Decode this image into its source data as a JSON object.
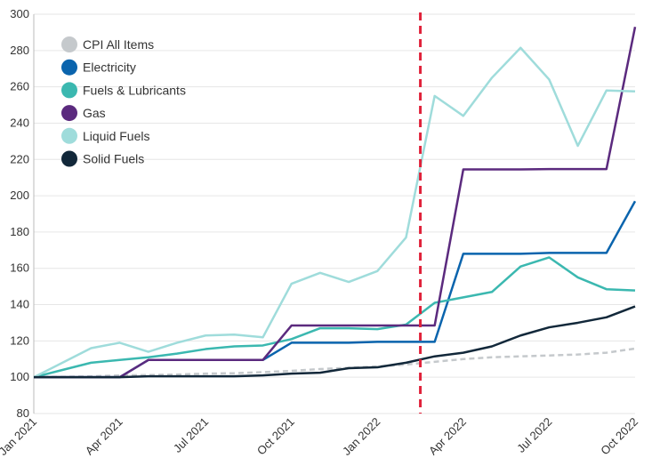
{
  "chart_data": {
    "type": "line",
    "categories": [
      "Jan 2021",
      null,
      null,
      "Apr 2021",
      null,
      null,
      "Jul 2021",
      null,
      null,
      "Oct 2021",
      null,
      null,
      "Jan 2022",
      null,
      null,
      "Apr 2022",
      null,
      null,
      "Jul 2022",
      null,
      null,
      "Oct 2022"
    ],
    "series": [
      {
        "name": "CPI All Items",
        "color": "#c5c9cc",
        "dashed": true,
        "values": [
          100,
          100.2,
          100.5,
          101,
          101.2,
          101.5,
          102,
          102.2,
          102.8,
          103.5,
          104.5,
          105.2,
          106,
          107,
          108.5,
          110,
          111,
          111.5,
          112,
          112.5,
          113.5,
          115.8
        ]
      },
      {
        "name": "Electricity",
        "color": "#0a64ad",
        "values": [
          100,
          100,
          100,
          100,
          109.5,
          109.5,
          109.5,
          109.5,
          109.5,
          119,
          119,
          119,
          119.5,
          119.5,
          119.5,
          168,
          168,
          168,
          168.5,
          168.5,
          168.5,
          197
        ]
      },
      {
        "name": "Fuels & Lubricants",
        "color": "#3bb8b0",
        "values": [
          100,
          104,
          108,
          109.5,
          111,
          113,
          115.5,
          117,
          117.5,
          121,
          127,
          127,
          126.5,
          129,
          141,
          144,
          147,
          161,
          166,
          155,
          148.5,
          147.8
        ]
      },
      {
        "name": "Gas",
        "color": "#5b2a7e",
        "values": [
          100,
          100,
          100,
          100,
          109.5,
          109.5,
          109.5,
          109.5,
          109.5,
          128.5,
          128.5,
          128.5,
          128.5,
          128.5,
          128.5,
          214.5,
          214.5,
          214.5,
          214.7,
          214.7,
          214.7,
          293
        ]
      },
      {
        "name": "Liquid Fuels",
        "color": "#9fdcdb",
        "values": [
          100,
          108,
          116,
          119,
          114,
          119,
          123,
          123.5,
          122,
          151.5,
          157.5,
          152.5,
          158.5,
          177,
          255,
          244,
          265,
          281.5,
          264,
          227.5,
          258,
          257.5
        ]
      },
      {
        "name": "Solid Fuels",
        "color": "#12283a",
        "values": [
          100,
          100,
          100,
          100,
          100.5,
          100.5,
          100.5,
          100.5,
          101,
          102,
          102.5,
          105,
          105.5,
          108,
          111.5,
          113.5,
          117,
          123,
          127.5,
          130,
          133,
          139
        ]
      }
    ],
    "ylim": [
      80,
      300
    ],
    "yticks": [
      80,
      100,
      120,
      140,
      160,
      180,
      200,
      220,
      240,
      260,
      280,
      300
    ],
    "grid": true,
    "legend": "top-left",
    "vline": {
      "x": 13.5,
      "color": "#e0223a"
    }
  }
}
